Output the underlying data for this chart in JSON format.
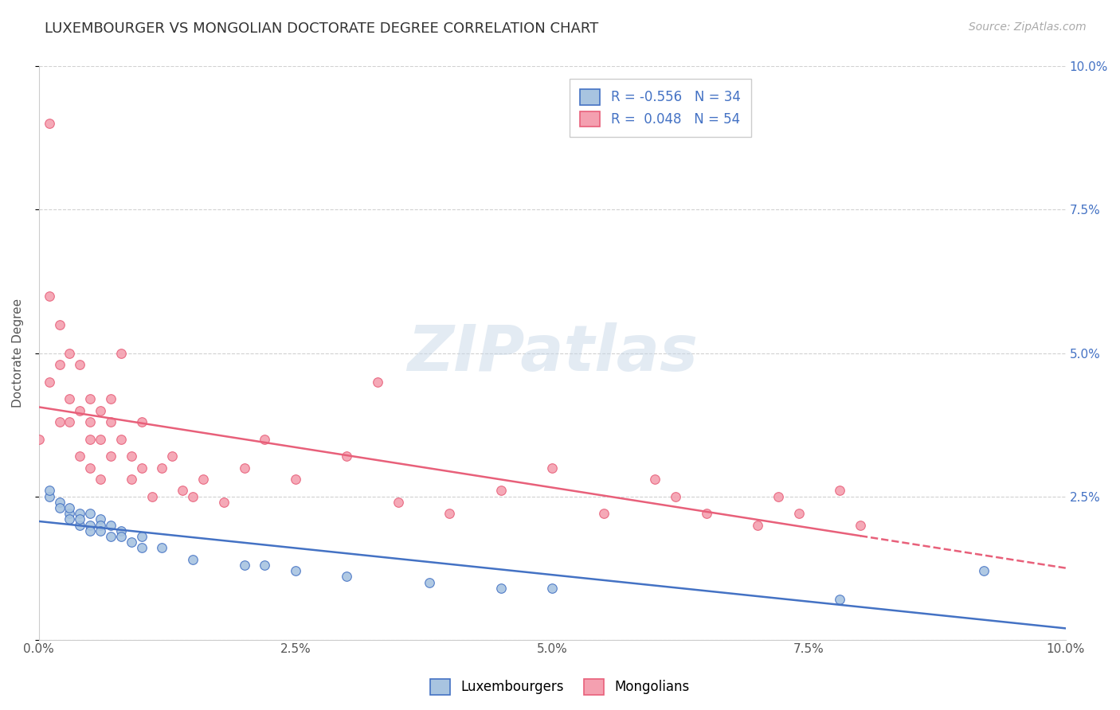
{
  "title": "LUXEMBOURGER VS MONGOLIAN DOCTORATE DEGREE CORRELATION CHART",
  "source": "Source: ZipAtlas.com",
  "ylabel": "Doctorate Degree",
  "xlabel": "",
  "watermark": "ZIPatlas",
  "legend_lux": "Luxembourgers",
  "legend_mon": "Mongolians",
  "R_lux": -0.556,
  "N_lux": 34,
  "R_mon": 0.048,
  "N_mon": 54,
  "xlim": [
    0.0,
    0.1
  ],
  "ylim": [
    0.0,
    0.1
  ],
  "xticks": [
    0.0,
    0.025,
    0.05,
    0.075,
    0.1
  ],
  "yticks": [
    0.0,
    0.025,
    0.05,
    0.075,
    0.1
  ],
  "xticklabels": [
    "0.0%",
    "2.5%",
    "5.0%",
    "7.5%",
    "10.0%"
  ],
  "right_yticklabels": [
    "",
    "2.5%",
    "5.0%",
    "7.5%",
    "10.0%"
  ],
  "color_lux": "#a8c4e0",
  "color_mon": "#f4a0b0",
  "line_color_lux": "#4472c4",
  "line_color_mon": "#e8607a",
  "background_color": "#ffffff",
  "grid_color": "#cccccc",
  "lux_x": [
    0.001,
    0.001,
    0.002,
    0.002,
    0.003,
    0.003,
    0.003,
    0.004,
    0.004,
    0.004,
    0.005,
    0.005,
    0.005,
    0.006,
    0.006,
    0.006,
    0.007,
    0.007,
    0.008,
    0.008,
    0.009,
    0.01,
    0.01,
    0.012,
    0.015,
    0.02,
    0.022,
    0.025,
    0.03,
    0.038,
    0.045,
    0.05,
    0.078,
    0.092
  ],
  "lux_y": [
    0.025,
    0.026,
    0.024,
    0.023,
    0.022,
    0.023,
    0.021,
    0.022,
    0.02,
    0.021,
    0.022,
    0.02,
    0.019,
    0.021,
    0.02,
    0.019,
    0.02,
    0.018,
    0.019,
    0.018,
    0.017,
    0.018,
    0.016,
    0.016,
    0.014,
    0.013,
    0.013,
    0.012,
    0.011,
    0.01,
    0.009,
    0.009,
    0.007,
    0.012
  ],
  "mon_x": [
    0.0,
    0.001,
    0.001,
    0.001,
    0.002,
    0.002,
    0.002,
    0.003,
    0.003,
    0.003,
    0.004,
    0.004,
    0.004,
    0.005,
    0.005,
    0.005,
    0.005,
    0.006,
    0.006,
    0.006,
    0.007,
    0.007,
    0.007,
    0.008,
    0.008,
    0.009,
    0.009,
    0.01,
    0.01,
    0.011,
    0.012,
    0.013,
    0.014,
    0.015,
    0.016,
    0.018,
    0.02,
    0.022,
    0.025,
    0.03,
    0.033,
    0.035,
    0.04,
    0.045,
    0.05,
    0.055,
    0.06,
    0.062,
    0.065,
    0.07,
    0.072,
    0.074,
    0.078,
    0.08
  ],
  "mon_y": [
    0.035,
    0.09,
    0.06,
    0.045,
    0.055,
    0.048,
    0.038,
    0.05,
    0.042,
    0.038,
    0.048,
    0.04,
    0.032,
    0.042,
    0.038,
    0.035,
    0.03,
    0.04,
    0.035,
    0.028,
    0.042,
    0.038,
    0.032,
    0.05,
    0.035,
    0.032,
    0.028,
    0.038,
    0.03,
    0.025,
    0.03,
    0.032,
    0.026,
    0.025,
    0.028,
    0.024,
    0.03,
    0.035,
    0.028,
    0.032,
    0.045,
    0.024,
    0.022,
    0.026,
    0.03,
    0.022,
    0.028,
    0.025,
    0.022,
    0.02,
    0.025,
    0.022,
    0.026,
    0.02
  ],
  "title_fontsize": 13,
  "axis_fontsize": 11,
  "tick_fontsize": 11,
  "source_fontsize": 10,
  "legend_fontsize": 12
}
